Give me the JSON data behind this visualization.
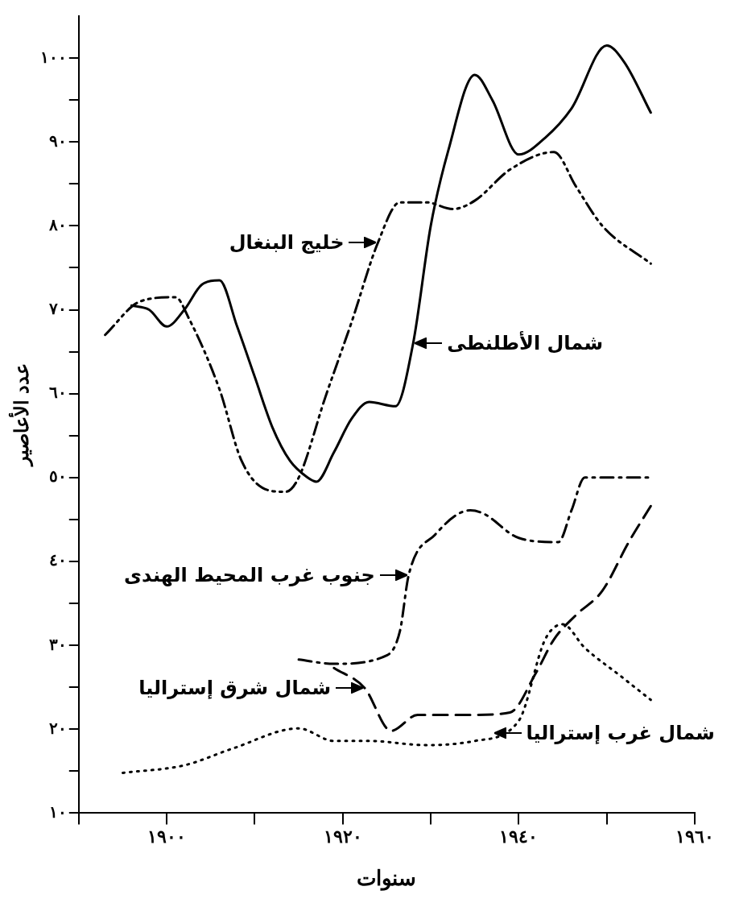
{
  "chart_data": {
    "type": "line",
    "xlabel": "سنوات",
    "ylabel": "عدد الأعاصير",
    "xlim": [
      1890,
      1960
    ],
    "xticks": [
      {
        "value": 1890,
        "label": null
      },
      {
        "value": 1900,
        "label": "١٩٠٠"
      },
      {
        "value": 1910,
        "label": null
      },
      {
        "value": 1920,
        "label": "١٩٢٠"
      },
      {
        "value": 1930,
        "label": null
      },
      {
        "value": 1940,
        "label": "١٩٤٠"
      },
      {
        "value": 1950,
        "label": null
      },
      {
        "value": 1960,
        "label": "١٩٦٠"
      }
    ],
    "ylim": [
      10,
      105
    ],
    "yticks": [
      {
        "value": 10,
        "label": "١٠"
      },
      {
        "value": 15,
        "label": null
      },
      {
        "value": 20,
        "label": "٢٠"
      },
      {
        "value": 25,
        "label": null
      },
      {
        "value": 30,
        "label": "٣٠"
      },
      {
        "value": 35,
        "label": null
      },
      {
        "value": 40,
        "label": "٤٠"
      },
      {
        "value": 45,
        "label": null
      },
      {
        "value": 50,
        "label": "٥٠"
      },
      {
        "value": 55,
        "label": null
      },
      {
        "value": 60,
        "label": "٦٠"
      },
      {
        "value": 65,
        "label": null
      },
      {
        "value": 70,
        "label": "٧٠"
      },
      {
        "value": 75,
        "label": null
      },
      {
        "value": 80,
        "label": "٨٠"
      },
      {
        "value": 85,
        "label": null
      },
      {
        "value": 90,
        "label": "٩٠"
      },
      {
        "value": 95,
        "label": null
      },
      {
        "value": 100,
        "label": "١٠٠"
      }
    ],
    "grid": false,
    "legend": false,
    "marker": "none",
    "series": [
      {
        "color": "#000000",
        "line_style": "solid",
        "x": [
          1896,
          1898,
          1900,
          1902,
          1904,
          1906,
          1908,
          1910,
          1912,
          1914,
          1916,
          1917,
          1919,
          1921,
          1923,
          1926,
          1928,
          1930,
          1932,
          1935,
          1937,
          1940,
          1943,
          1946,
          1950,
          1952,
          1955
        ],
        "values": [
          70.5,
          70,
          68,
          70,
          73,
          73.5,
          68,
          62,
          56,
          52,
          50,
          49.5,
          53,
          57,
          59,
          58.5,
          66,
          80,
          89,
          98,
          95,
          88.5,
          90.5,
          94,
          101.5,
          99.5,
          93.5
        ]
      },
      {
        "color": "#000000",
        "line_style": "dashdotdot",
        "x": [
          1893,
          1897,
          1901,
          1902.5,
          1906,
          1908.5,
          1911.5,
          1913.5,
          1915,
          1918,
          1921,
          1924,
          1926.5,
          1929.5,
          1932.5,
          1935,
          1939,
          1944,
          1946.5,
          1949.5,
          1955
        ],
        "values": [
          67,
          71,
          71.5,
          69,
          60.5,
          52,
          48.5,
          48.3,
          50,
          59.5,
          68.5,
          78,
          82.8,
          82.8,
          82,
          83,
          86.7,
          88.8,
          84.7,
          80,
          75.5
        ]
      },
      {
        "color": "#000000",
        "line_style": "dashdot",
        "x": [
          1915,
          1919,
          1925,
          1926.5,
          1927.5,
          1930.5,
          1934.5,
          1936,
          1940,
          1944.5,
          1946,
          1947.5,
          1951.5,
          1955
        ],
        "values": [
          28.3,
          27.8,
          28.8,
          31.7,
          38.4,
          43.2,
          46.1,
          45.7,
          42.8,
          42.3,
          46.1,
          50,
          50,
          50
        ]
      },
      {
        "color": "#000000",
        "line_style": "dashed",
        "x": [
          1919,
          1922.5,
          1925.5,
          1928.5,
          1934.5,
          1939,
          1942,
          1944,
          1946.5,
          1949.5,
          1952.5,
          1955
        ],
        "values": [
          27.3,
          24.9,
          19.8,
          21.7,
          21.7,
          22,
          26.8,
          30.7,
          33.6,
          36.5,
          42.3,
          46.6
        ]
      },
      {
        "color": "#000000",
        "line_style": "dotted",
        "x": [
          1895,
          1902,
          1907.5,
          1915,
          1919,
          1923,
          1929.5,
          1935,
          1940,
          1943,
          1945,
          1947.5,
          1951.5,
          1955
        ],
        "values": [
          14.8,
          15.7,
          17.7,
          20.1,
          18.6,
          18.6,
          18.1,
          18.6,
          21,
          30.7,
          32.5,
          29.7,
          26.4,
          23.5
        ]
      }
    ],
    "annotations": [
      {
        "text": "خليج البنغال",
        "x": 1924,
        "y": 78
      },
      {
        "text": "شمال الأطلنطى",
        "x": 1928,
        "y": 66
      },
      {
        "text": "جنوب غرب المحيط الهندى",
        "x": 1927.5,
        "y": 38.4
      },
      {
        "text": "شمال شرق إستراليا",
        "x": 1922.5,
        "y": 24.9
      },
      {
        "text": "شمال غرب إستراليا",
        "x": 1937,
        "y": 19.5
      }
    ]
  }
}
